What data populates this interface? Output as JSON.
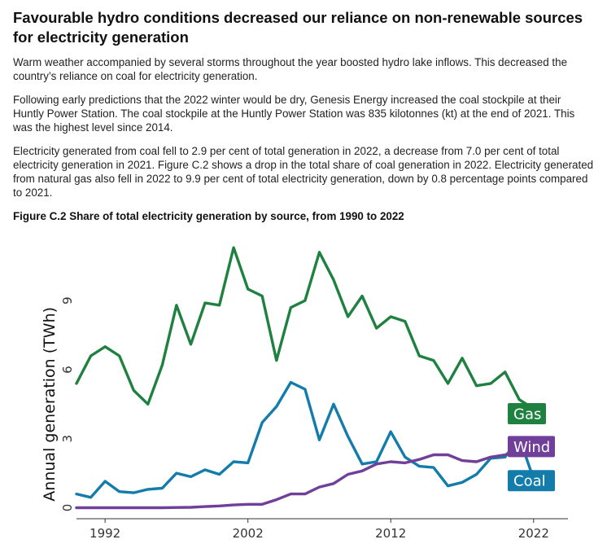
{
  "article": {
    "title": "Favourable hydro conditions decreased our reliance on non-renewable sources for electricity generation",
    "paragraphs": [
      "Warm weather accompanied by several storms throughout the year boosted hydro lake inflows. This decreased the country’s reliance on coal for electricity generation.",
      "Following early predictions that the 2022 winter would be dry, Genesis Energy increased the coal stockpile at their Huntly Power Station. The coal stockpile at the Huntly Power Station was 835 kilotonnes (kt) at the end of 2021. This was the highest level since 2014.",
      "Electricity generated from coal fell to 2.9 per cent of total generation in 2022, a decrease from 7.0 per cent of total electricity generation in 2021. Figure C.2 shows a drop in the total share of coal generation in 2022. Electricity generated from natural gas also fell in 2022 to 9.9 per cent of total electricity generation, down by 0.8 percentage points compared to 2021."
    ],
    "figure_title": "Figure C.2 Share of total electricity generation by source, from 1990 to 2022"
  },
  "chart_data": {
    "type": "line",
    "ylabel": "Annual generation (TWh)",
    "xlabel": "",
    "x": [
      1990,
      1991,
      1992,
      1993,
      1994,
      1995,
      1996,
      1997,
      1998,
      1999,
      2000,
      2001,
      2002,
      2003,
      2004,
      2005,
      2006,
      2007,
      2008,
      2009,
      2010,
      2011,
      2012,
      2013,
      2014,
      2015,
      2016,
      2017,
      2018,
      2019,
      2020,
      2021,
      2022
    ],
    "x_ticks": [
      1992,
      2002,
      2012,
      2022
    ],
    "y_ticks": [
      0,
      3,
      6,
      9
    ],
    "xlim": [
      1989.2,
      2026
    ],
    "ylim": [
      -0.3,
      11.8
    ],
    "series": [
      {
        "name": "Gas",
        "color": "#1e8140",
        "values": [
          5.4,
          6.6,
          7.0,
          6.6,
          5.1,
          4.5,
          6.2,
          8.8,
          7.1,
          8.9,
          8.8,
          11.3,
          9.5,
          9.2,
          6.4,
          8.7,
          9.0,
          11.1,
          9.9,
          8.3,
          9.2,
          7.8,
          8.3,
          8.1,
          6.6,
          6.4,
          5.4,
          6.5,
          5.3,
          5.4,
          5.9,
          4.7,
          4.3
        ]
      },
      {
        "name": "Coal",
        "color": "#137cab",
        "values": [
          0.6,
          0.45,
          1.15,
          0.7,
          0.65,
          0.8,
          0.85,
          1.5,
          1.35,
          1.65,
          1.45,
          2.0,
          1.95,
          3.7,
          4.4,
          5.45,
          5.15,
          2.95,
          4.5,
          3.1,
          1.9,
          2.0,
          3.3,
          2.2,
          1.8,
          1.75,
          0.95,
          1.1,
          1.45,
          2.15,
          2.2,
          3.05,
          1.25
        ]
      },
      {
        "name": "Wind",
        "color": "#6f3f99",
        "values": [
          0,
          0,
          0,
          0,
          0,
          0,
          0,
          0.01,
          0.02,
          0.05,
          0.08,
          0.12,
          0.15,
          0.15,
          0.35,
          0.6,
          0.6,
          0.9,
          1.05,
          1.45,
          1.6,
          1.9,
          2.0,
          1.95,
          2.1,
          2.3,
          2.3,
          2.05,
          2.0,
          2.2,
          2.3,
          2.5,
          2.8
        ]
      }
    ],
    "legend": {
      "placement": "right-end",
      "labels": [
        "Gas",
        "Wind",
        "Coal"
      ]
    },
    "grid": false
  }
}
